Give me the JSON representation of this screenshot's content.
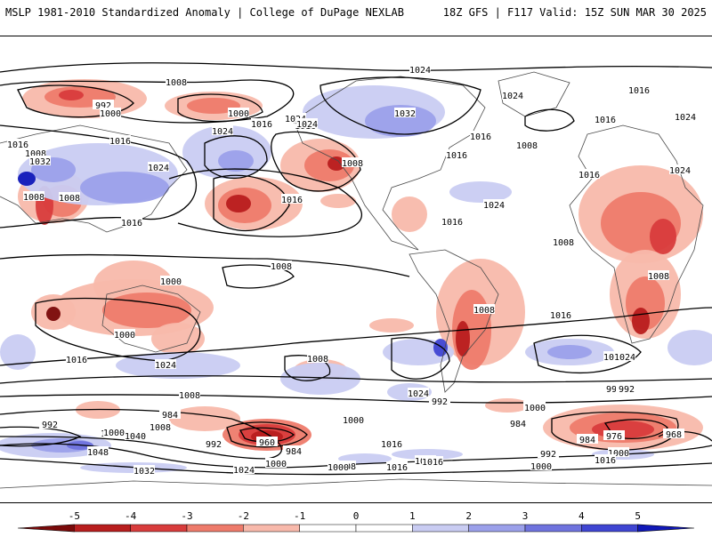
{
  "header": {
    "title_left": "MSLP 1981-2010 Standardized Anomaly | College of DuPage NEXLAB",
    "title_right": "18Z GFS | F117 Valid: 15Z SUN MAR 30 2025"
  },
  "colors": {
    "neg5": "#7a0a0a",
    "neg4": "#b81e1e",
    "neg3": "#d83c3c",
    "neg2": "#ee7b6b",
    "neg1": "#f8b9ab",
    "zero": "#ffffff",
    "pos1": "#c9ccf2",
    "pos2": "#9ba0ea",
    "pos3": "#6f73de",
    "pos4": "#3f45d2",
    "pos5": "#1018b8",
    "land": "#555555",
    "isobar": "#000000"
  },
  "colorbar": {
    "ticks": [
      "-5",
      "-4",
      "-3",
      "-2",
      "-1",
      "0",
      "1",
      "2",
      "3",
      "4",
      "5"
    ]
  },
  "isobar_labels": [
    "1024",
    "1008",
    "1024",
    "1016",
    "1016",
    "992",
    "1000",
    "1000",
    "1016",
    "1024",
    "1032",
    "1024",
    "1016",
    "1016",
    "1008",
    "1016",
    "1008",
    "1024",
    "1016",
    "1032",
    "1024",
    "1024",
    "1016",
    "1008",
    "1008",
    "1024",
    "1008",
    "1016",
    "1016",
    "1024",
    "1008",
    "1008",
    "1000",
    "1008",
    "1016",
    "1016",
    "1016",
    "1008",
    "1024",
    "1000",
    "1016",
    "1024",
    "1024",
    "1008",
    "1008",
    "992",
    "1000",
    "984",
    "984",
    "1000",
    "992",
    "992",
    "1016",
    "1000",
    "1040",
    "1000",
    "1008",
    "1048",
    "992",
    "960",
    "984",
    "1000",
    "1008",
    "1016",
    "1000",
    "992",
    "1032",
    "1024",
    "984",
    "976",
    "968",
    "1000",
    "1016",
    "1000",
    "1024",
    "992",
    "1000",
    "1016",
    "1008"
  ]
}
